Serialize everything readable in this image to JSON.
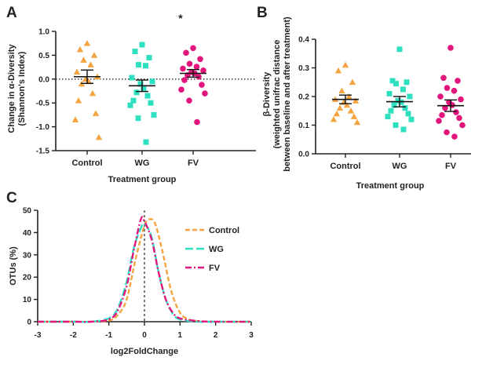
{
  "colors": {
    "control": "#f4a440",
    "wg": "#2fe0c0",
    "fv": "#e2157d",
    "axis": "#222222"
  },
  "chart_data": [
    {
      "panel": "A",
      "type": "scatter",
      "xlabel": "Treatment group",
      "ylabel_line1": "Change in α-Diversity",
      "ylabel_line2": "(Shannon's Index)",
      "ylim": [
        -1.5,
        1.0
      ],
      "yticks": [
        "1.0",
        "0.5",
        "0.0",
        "-0.5",
        "-1.0",
        "-1.5"
      ],
      "categories": [
        "Control",
        "WG",
        "FV"
      ],
      "significance_marker": "*",
      "series": [
        {
          "values": [
            0.75,
            0.62,
            0.5,
            0.4,
            0.3,
            0.15,
            0.05,
            0.0,
            -0.05,
            -0.1,
            -0.3,
            -0.45,
            -0.72,
            -0.85,
            -1.22
          ],
          "mean": 0.05,
          "sem": 0.14
        },
        {
          "values": [
            0.72,
            0.58,
            0.45,
            0.3,
            0.28,
            0.03,
            -0.05,
            -0.1,
            -0.2,
            -0.28,
            -0.35,
            -0.45,
            -0.5,
            -0.55,
            -0.75,
            -0.82,
            -1.32
          ],
          "mean": -0.14,
          "sem": 0.12
        },
        {
          "values": [
            0.65,
            0.55,
            0.42,
            0.32,
            0.26,
            0.22,
            0.18,
            0.15,
            0.12,
            0.08,
            0.05,
            -0.02,
            -0.12,
            -0.22,
            -0.3,
            -0.45,
            -0.9
          ],
          "mean": 0.12,
          "sem": 0.08
        }
      ]
    },
    {
      "panel": "B",
      "type": "scatter",
      "xlabel": "Treatment group",
      "ylabel_line1": "β-Diversity",
      "ylabel_line2": "(weighted unifrac distance",
      "ylabel_line3": "between baseline and after treatment)",
      "ylim": [
        0,
        0.4
      ],
      "yticks": [
        "0.4",
        "0.3",
        "0.2",
        "0.1",
        "0.0"
      ],
      "categories": [
        "Control",
        "WG",
        "FV"
      ],
      "series": [
        {
          "values": [
            0.31,
            0.29,
            0.25,
            0.22,
            0.2,
            0.19,
            0.185,
            0.18,
            0.17,
            0.16,
            0.15,
            0.14,
            0.13,
            0.12,
            0.11
          ],
          "mean": 0.19,
          "sem": 0.015
        },
        {
          "values": [
            0.365,
            0.255,
            0.25,
            0.245,
            0.225,
            0.21,
            0.2,
            0.185,
            0.18,
            0.17,
            0.16,
            0.15,
            0.14,
            0.13,
            0.12,
            0.1,
            0.085
          ],
          "mean": 0.182,
          "sem": 0.018
        },
        {
          "values": [
            0.37,
            0.265,
            0.255,
            0.23,
            0.22,
            0.2,
            0.19,
            0.18,
            0.17,
            0.16,
            0.145,
            0.135,
            0.125,
            0.115,
            0.1,
            0.075,
            0.06
          ],
          "mean": 0.168,
          "sem": 0.02
        }
      ]
    },
    {
      "panel": "C",
      "type": "line",
      "xlabel": "log2FoldChange",
      "ylabel": "OTUs (%)",
      "xlim": [
        -3,
        3
      ],
      "ylim": [
        0,
        50
      ],
      "xticks": [
        "-3",
        "-2",
        "-1",
        "0",
        "1",
        "2",
        "3"
      ],
      "yticks": [
        "50",
        "40",
        "30",
        "20",
        "10",
        "0"
      ],
      "legend_position": "top-right",
      "series": [
        {
          "name": "Control",
          "style": "dashed",
          "x": [
            -3,
            -2,
            -1.5,
            -1.0,
            -0.75,
            -0.5,
            -0.25,
            0.0,
            0.15,
            0.3,
            0.5,
            0.75,
            1.0,
            1.25,
            1.5,
            2,
            3
          ],
          "y": [
            0,
            0,
            0,
            0.5,
            3,
            10,
            28,
            43,
            46,
            44,
            32,
            14,
            4,
            1,
            0.3,
            0,
            0
          ]
        },
        {
          "name": "WG",
          "style": "long-dash",
          "x": [
            -3,
            -2,
            -1.5,
            -1.0,
            -0.75,
            -0.5,
            -0.3,
            -0.1,
            0.0,
            0.2,
            0.4,
            0.6,
            0.8,
            1.0,
            1.5,
            2,
            3
          ],
          "y": [
            0,
            0,
            0,
            1.5,
            6,
            18,
            33,
            42,
            44,
            38,
            22,
            10,
            3.5,
            1,
            0,
            0,
            0
          ]
        },
        {
          "name": "FV",
          "style": "dash-dot",
          "x": [
            -3,
            -2,
            -1.5,
            -1.0,
            -0.75,
            -0.5,
            -0.3,
            -0.1,
            0.0,
            0.2,
            0.4,
            0.6,
            0.8,
            1.0,
            1.5,
            2,
            3
          ],
          "y": [
            0,
            0,
            0,
            1,
            5,
            16,
            32,
            46,
            45,
            37,
            22,
            10,
            4,
            1.5,
            0.3,
            0,
            0
          ]
        }
      ]
    }
  ]
}
